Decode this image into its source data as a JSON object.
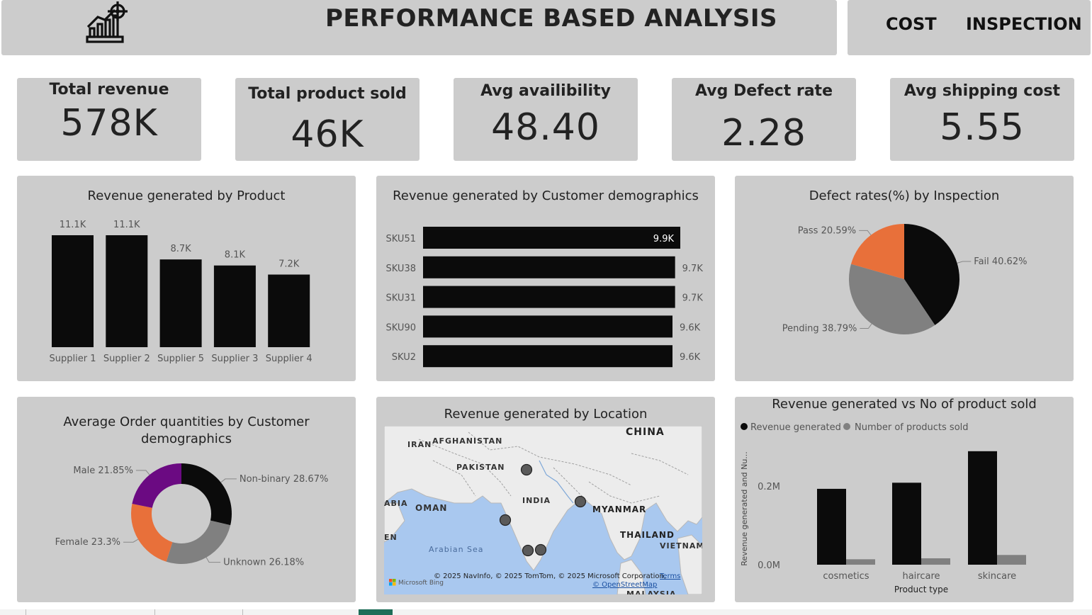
{
  "header": {
    "title": "PERFORMANCE BASED ANALYSIS",
    "logo_icon": "growth-chart-target-icon",
    "nav": [
      "COST",
      "INSPECTION"
    ]
  },
  "kpis": [
    {
      "title": "Total revenue",
      "value": "578K"
    },
    {
      "title": "Total product sold",
      "value": "46K"
    },
    {
      "title": "Avg availibility",
      "value": "48.40"
    },
    {
      "title": "Avg Defect rate",
      "value": "2.28"
    },
    {
      "title": "Avg shipping cost",
      "value": "5.55"
    }
  ],
  "colors": {
    "panel": "#cccccc",
    "bar": "#0b0b0b",
    "grey": "#808080",
    "orange": "#e8703a",
    "purple": "#6b0a82",
    "map_water": "#a9c8ef",
    "map_land": "#ececec"
  },
  "charts": {
    "revenue_by_product": {
      "title": "Revenue generated by Product"
    },
    "revenue_by_demo": {
      "title": "Revenue generated by Customer demographics"
    },
    "defect_by_inspection": {
      "title": "Defect rates(%) by Inspection"
    },
    "avg_order_qty": {
      "title": "Average Order quantities by Customer demographics"
    },
    "revenue_by_location": {
      "title": "Revenue generated by Location"
    },
    "revenue_vs_sold": {
      "title": "Revenue generated vs No of product sold"
    }
  },
  "chart_data": [
    {
      "id": "revenue_by_product",
      "type": "bar",
      "title": "Revenue generated by Product",
      "categories": [
        "Supplier 1",
        "Supplier 2",
        "Supplier 5",
        "Supplier 3",
        "Supplier 4"
      ],
      "values": [
        11100,
        11100,
        8700,
        8100,
        7200
      ],
      "data_labels": [
        "11.1K",
        "11.1K",
        "8.7K",
        "8.1K",
        "7.2K"
      ],
      "ylim": [
        0,
        11100
      ]
    },
    {
      "id": "revenue_by_demo",
      "type": "bar",
      "orientation": "horizontal",
      "title": "Revenue generated by Customer demographics",
      "categories": [
        "SKU51",
        "SKU38",
        "SKU31",
        "SKU90",
        "SKU2"
      ],
      "values": [
        9900,
        9700,
        9700,
        9600,
        9600
      ],
      "data_labels": [
        "9.9K",
        "9.7K",
        "9.7K",
        "9.6K",
        "9.6K"
      ],
      "xlim": [
        0,
        9900
      ]
    },
    {
      "id": "defect_by_inspection",
      "type": "pie",
      "title": "Defect rates(%) by Inspection",
      "slices": [
        {
          "label": "Fail",
          "value": 40.62,
          "text": "Fail 40.62%",
          "color": "#0b0b0b"
        },
        {
          "label": "Pending",
          "value": 38.79,
          "text": "Pending 38.79%",
          "color": "#808080"
        },
        {
          "label": "Pass",
          "value": 20.59,
          "text": "Pass 20.59%",
          "color": "#e8703a"
        }
      ]
    },
    {
      "id": "avg_order_qty",
      "type": "pie",
      "donut": true,
      "title": "Average Order quantities by Customer demographics",
      "slices": [
        {
          "label": "Non-binary",
          "value": 28.67,
          "text": "Non-binary 28.67%",
          "color": "#0b0b0b"
        },
        {
          "label": "Unknown",
          "value": 26.18,
          "text": "Unknown 26.18%",
          "color": "#808080"
        },
        {
          "label": "Female",
          "value": 23.3,
          "text": "Female 23.3%",
          "color": "#e8703a"
        },
        {
          "label": "Male",
          "value": 21.85,
          "text": "Male 21.85%",
          "color": "#6b0a82"
        }
      ]
    },
    {
      "id": "revenue_by_location",
      "type": "scatter",
      "title": "Revenue generated by Location",
      "map_labels": [
        "CHINA",
        "IRAN",
        "AFGHANISTAN",
        "PAKISTAN",
        "INDIA",
        "OMAN",
        "ABIA",
        "MYANMAR",
        "THAILAND",
        "VIETNAM",
        "EN",
        "Arabian Sea",
        "MALAYSIA"
      ],
      "attribution": "© 2025 NavInfo, © 2025 TomTom, © 2025 Microsoft Corporation,",
      "terms": "Terms",
      "osm": "© OpenStreetMap",
      "bing": "Microsoft Bing"
    },
    {
      "id": "revenue_vs_sold",
      "type": "bar",
      "title": "Revenue generated vs No of product sold",
      "categories": [
        "cosmetics",
        "haircare",
        "skincare"
      ],
      "series": [
        {
          "name": "Revenue generated",
          "values": [
            161500,
            174500,
            241600
          ],
          "color": "#0b0b0b"
        },
        {
          "name": "Number of products sold",
          "values": [
            11600,
            13600,
            20700
          ],
          "color": "#808080"
        }
      ],
      "xlabel": "Product type",
      "ylabel": "Revenue generated and Nu...",
      "yticks": [
        "0.0M",
        "0.2M"
      ],
      "ylim": [
        0,
        270000
      ]
    }
  ]
}
